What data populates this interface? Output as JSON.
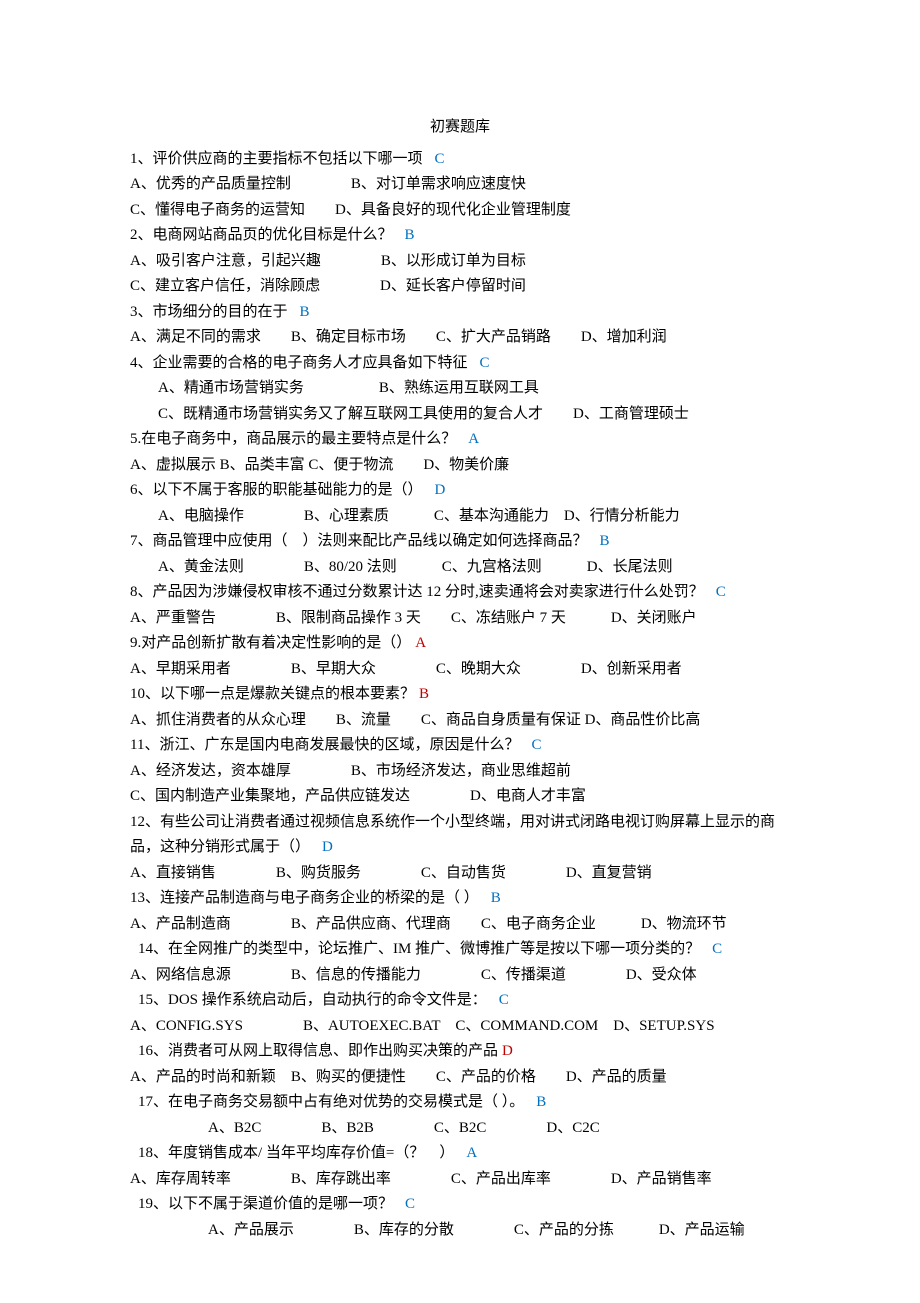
{
  "title": "初赛题库",
  "questions": [
    {
      "num": "1",
      "stem": "、评价供应商的主要指标不包括以下哪一项",
      "answer": "C",
      "ansColor": "blue",
      "optLines": [
        "A、优秀的产品质量控制　　　　B、对订单需求响应速度快",
        "C、懂得电子商务的运营知　　D、具备良好的现代化企业管理制度"
      ]
    },
    {
      "num": "2",
      "stem": "、电商网站商品页的优化目标是什么？",
      "answer": "B",
      "ansColor": "blue",
      "optLines": [
        "A、吸引客户注意，引起兴趣　　　　B、以形成订单为目标",
        "C、建立客户信任，消除顾虑　　　　D、延长客户停留时间"
      ]
    },
    {
      "num": "3",
      "stem": "、市场细分的目的在于",
      "answer": "B",
      "ansColor": "blue",
      "optLines": [
        "A、满足不同的需求　　B、确定目标市场　　C、扩大产品销路　　D、增加利润"
      ]
    },
    {
      "num": "4",
      "stem": "、企业需要的合格的电子商务人才应具备如下特征",
      "answer": "C",
      "ansColor": "blue",
      "optLines": [
        {
          "text": "A、精通市场营销实务　　　　　B、熟练运用互联网工具",
          "indent": true
        },
        {
          "text": "C、既精通市场营销实务又了解互联网工具使用的复合人才　　D、工商管理硕士",
          "indent": true
        }
      ]
    },
    {
      "num": "5",
      "stem": ".在电子商务中，商品展示的最主要特点是什么？",
      "answer": "A",
      "ansColor": "blue",
      "optLines": [
        {
          "text": "A、虚拟展示  B、品类丰富  C、便于物流　　D、物美价廉",
          "indent": false,
          "prefix": " "
        }
      ]
    },
    {
      "num": "6",
      "stem": "、以下不属于客服的职能基础能力的是（）",
      "answer": "D",
      "ansColor": "blue",
      "optLines": [
        {
          "text": "A、电脑操作　　　　B、心理素质　　　C、基本沟通能力　D、行情分析能力",
          "indent": true
        }
      ]
    },
    {
      "num": "7",
      "stem": "、商品管理中应使用（　）法则来配比产品线以确定如何选择商品？",
      "answer": "B",
      "ansColor": "blue",
      "optLines": [
        {
          "text": "A、黄金法则　　　　B、80/20 法则　　　C、九宫格法则　　　D、长尾法则",
          "indent": true
        }
      ]
    },
    {
      "num": "8",
      "stem": "、产品因为涉嫌侵权审核不通过分数累计达 12 分时,速卖通将会对卖家进行什么处罚？",
      "answer": "C",
      "ansColor": "blue",
      "optLines": [
        "A、严重警告　　　　B、限制商品操作 3 天　　C、冻结账户 7 天　　　D、关闭账户"
      ]
    },
    {
      "num": "9",
      "stem": ".对产品创新扩散有着决定性影响的是（）",
      "answer": "A",
      "ansColor": "red",
      "optLines": [
        "A、早期采用者　　　　B、早期大众　　　　C、晚期大众　　　　D、创新采用者"
      ]
    },
    {
      "num": "10",
      "stem": "、以下哪一点是爆款关键点的根本要素？",
      "answer": "B",
      "ansColor": "red",
      "optLines": [
        "A、抓住消费者的从众心理　　B、流量　　C、商品自身质量有保证  D、商品性价比高"
      ]
    },
    {
      "num": "11",
      "stem": "、浙江、广东是国内电商发展最快的区域，原因是什么？",
      "answer": "C",
      "ansColor": "blue",
      "optLines": [
        "A、经济发达，资本雄厚　　　　B、市场经济发达，商业思维超前",
        "C、国内制造产业集聚地，产品供应链发达　　　　D、电商人才丰富"
      ]
    },
    {
      "num": "12",
      "stem": "、有些公司让消费者通过视频信息系统作一个小型终端，用对讲式闭路电视订购屏幕上显示的商品，这种分销形式属于（）",
      "answer": "D",
      "ansColor": "blue",
      "optLines": [
        "A、直接销售　　　　B、购货服务　　　　C、自动售货　　　　D、直复营销"
      ]
    },
    {
      "num": "13",
      "stem": "、连接产品制造商与电子商务企业的桥梁的是（ ）",
      "answer": "B",
      "ansColor": "blue",
      "optLines": [
        "A、产品制造商　　　　B、产品供应商、代理商　　C、电子商务企业　　　D、物流环节"
      ]
    },
    {
      "num": "14",
      "stem": "、在全网推广的类型中，论坛推广、IM 推广、微博推广等是按以下哪一项分类的？",
      "answer": "C",
      "ansColor": "blue",
      "qIndent": true,
      "optLines": [
        {
          "text": "A、网络信息源　　　　B、信息的传播能力　　　　C、传播渠道　　　　D、受众体",
          "prefix": " "
        }
      ]
    },
    {
      "num": "15",
      "stem": "、DOS 操作系统启动后，自动执行的命令文件是：",
      "answer": "C",
      "ansColor": "blue",
      "qIndent": true,
      "optLines": [
        {
          "text": "A、CONFIG.SYS　　　　B、AUTOEXEC.BAT　C、COMMAND.COM　D、SETUP.SYS",
          "prefix": " "
        }
      ]
    },
    {
      "num": "16",
      "stem": "、消费者可从网上取得信息、即作出购买决策的产品",
      "answer": "D",
      "ansColor": "red",
      "qIndent": true,
      "optLines": [
        {
          "text": "A、产品的时尚和新颖　B、购买的便捷性　　C、产品的价格　　D、产品的质量",
          "prefix": " "
        }
      ]
    },
    {
      "num": "17",
      "stem": "、在电子商务交易额中占有绝对优势的交易模式是（ ）。",
      "answer": "B",
      "ansColor": "blue",
      "qIndent": true,
      "optLines": [
        {
          "text": "A、B2C　　　　B、B2B　　　　C、B2C　　　　D、C2C",
          "indent2": true
        }
      ]
    },
    {
      "num": "18",
      "stem": "、年度销售成本/ 当年平均库存价值=（？　）",
      "answer": "A",
      "ansColor": "blue",
      "qIndent": true,
      "optLines": [
        {
          "text": "A、库存周转率　　　　B、库存跳出率　　　　C、产品出库率　　　　D、产品销售率",
          "prefix": " "
        }
      ]
    },
    {
      "num": "19",
      "stem": "、以下不属于渠道价值的是哪一项？",
      "answer": "C",
      "ansColor": "blue",
      "qIndent": true,
      "optLines": [
        {
          "text": "A、产品展示　　　　B、库存的分散　　　　C、产品的分拣　　　D、产品运输",
          "indent2": true
        }
      ]
    }
  ]
}
